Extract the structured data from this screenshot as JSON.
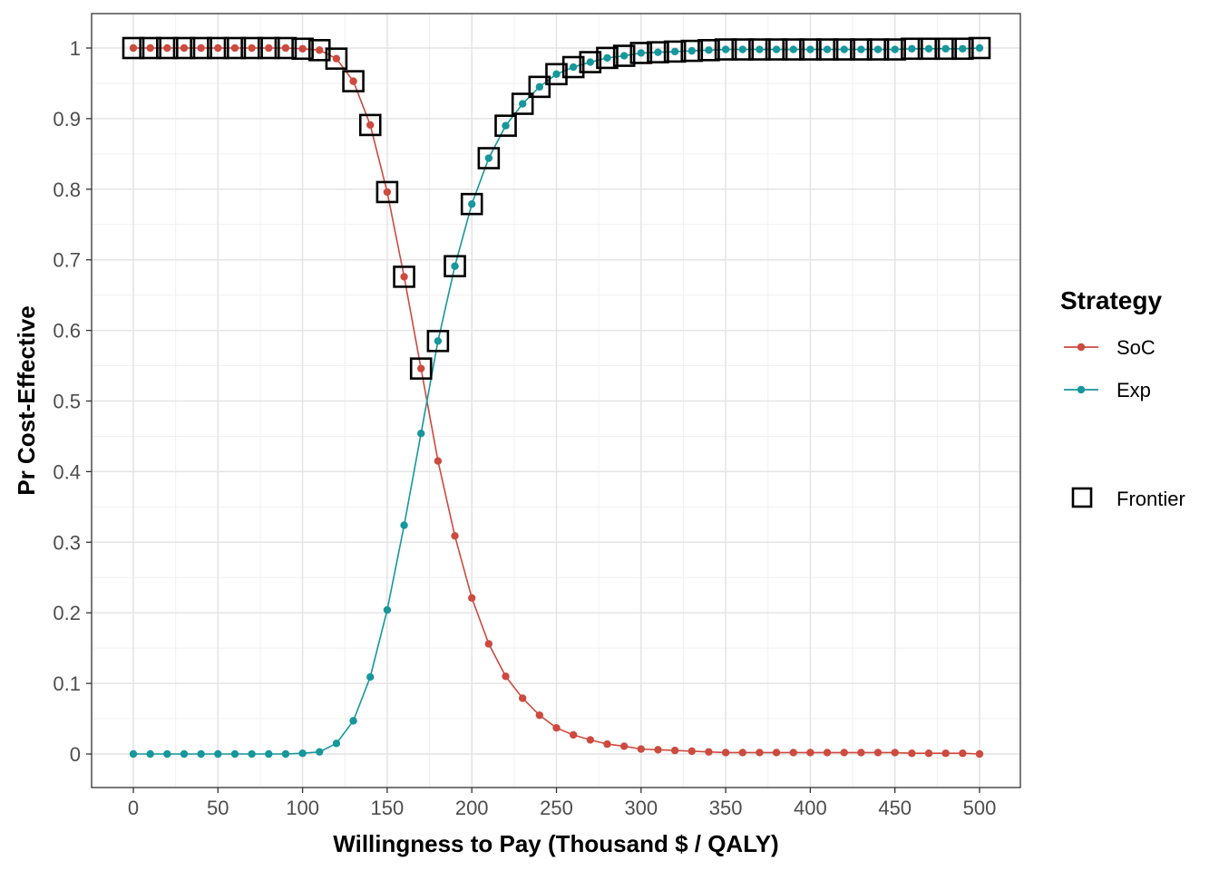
{
  "chart_data": {
    "type": "line",
    "xlabel": "Willingness to Pay (Thousand $ / QALY)",
    "ylabel": "Pr Cost-Effective",
    "xlim": [
      0,
      500
    ],
    "ylim": [
      0,
      1
    ],
    "x_ticks": [
      0,
      50,
      100,
      150,
      200,
      250,
      300,
      350,
      400,
      450,
      500
    ],
    "y_ticks": [
      0,
      0.1,
      0.2,
      0.3,
      0.4,
      0.5,
      0.6,
      0.7,
      0.8,
      0.9,
      1
    ],
    "x_tick_labels": [
      "0",
      "50",
      "100",
      "150",
      "200",
      "250",
      "300",
      "350",
      "400",
      "450",
      "500"
    ],
    "y_tick_labels": [
      "0",
      "0.1",
      "0.2",
      "0.3",
      "0.4",
      "0.5",
      "0.6",
      "0.7",
      "0.8",
      "0.9",
      "1"
    ],
    "grid": true,
    "legend_placement": "right",
    "legend": {
      "title": "Strategy",
      "frontier_label": "Frontier"
    },
    "x": [
      0,
      10,
      20,
      30,
      40,
      50,
      60,
      70,
      80,
      90,
      100,
      110,
      120,
      130,
      140,
      150,
      160,
      170,
      180,
      190,
      200,
      210,
      220,
      230,
      240,
      250,
      260,
      270,
      280,
      290,
      300,
      310,
      320,
      330,
      340,
      350,
      360,
      370,
      380,
      390,
      400,
      410,
      420,
      430,
      440,
      450,
      460,
      470,
      480,
      490,
      500
    ],
    "series": [
      {
        "name": "SoC",
        "color": "#cd4a3f",
        "values": [
          1,
          1,
          1,
          1,
          1,
          1,
          1,
          1,
          1,
          1,
          0.999,
          0.997,
          0.985,
          0.953,
          0.891,
          0.796,
          0.676,
          0.546,
          0.415,
          0.309,
          0.221,
          0.156,
          0.11,
          0.079,
          0.055,
          0.037,
          0.027,
          0.02,
          0.014,
          0.011,
          0.007,
          0.006,
          0.005,
          0.004,
          0.003,
          0.002,
          0.002,
          0.002,
          0.002,
          0.002,
          0.002,
          0.002,
          0.002,
          0.002,
          0.002,
          0.002,
          0.001,
          0.001,
          0.001,
          0.001,
          0
        ]
      },
      {
        "name": "Exp",
        "color": "#16979c",
        "values": [
          0,
          0,
          0,
          0,
          0,
          0,
          0,
          0,
          0,
          0,
          0.001,
          0.003,
          0.015,
          0.047,
          0.109,
          0.204,
          0.324,
          0.454,
          0.585,
          0.691,
          0.779,
          0.844,
          0.89,
          0.921,
          0.945,
          0.963,
          0.973,
          0.98,
          0.986,
          0.989,
          0.993,
          0.994,
          0.995,
          0.996,
          0.997,
          0.998,
          0.998,
          0.998,
          0.998,
          0.998,
          0.998,
          0.998,
          0.998,
          0.998,
          0.998,
          0.998,
          0.999,
          0.999,
          0.999,
          0.999,
          1
        ]
      }
    ],
    "frontier": [
      {
        "x": 0,
        "y": 1
      },
      {
        "x": 10,
        "y": 1
      },
      {
        "x": 20,
        "y": 1
      },
      {
        "x": 30,
        "y": 1
      },
      {
        "x": 40,
        "y": 1
      },
      {
        "x": 50,
        "y": 1
      },
      {
        "x": 60,
        "y": 1
      },
      {
        "x": 70,
        "y": 1
      },
      {
        "x": 80,
        "y": 1
      },
      {
        "x": 90,
        "y": 1
      },
      {
        "x": 100,
        "y": 0.999
      },
      {
        "x": 110,
        "y": 0.997
      },
      {
        "x": 120,
        "y": 0.985
      },
      {
        "x": 130,
        "y": 0.953
      },
      {
        "x": 140,
        "y": 0.891
      },
      {
        "x": 150,
        "y": 0.796
      },
      {
        "x": 160,
        "y": 0.676
      },
      {
        "x": 170,
        "y": 0.546
      },
      {
        "x": 180,
        "y": 0.585
      },
      {
        "x": 190,
        "y": 0.691
      },
      {
        "x": 200,
        "y": 0.779
      },
      {
        "x": 210,
        "y": 0.844
      },
      {
        "x": 220,
        "y": 0.89
      },
      {
        "x": 230,
        "y": 0.921
      },
      {
        "x": 240,
        "y": 0.945
      },
      {
        "x": 250,
        "y": 0.963
      },
      {
        "x": 260,
        "y": 0.973
      },
      {
        "x": 270,
        "y": 0.98
      },
      {
        "x": 280,
        "y": 0.986
      },
      {
        "x": 290,
        "y": 0.989
      },
      {
        "x": 300,
        "y": 0.993
      },
      {
        "x": 310,
        "y": 0.994
      },
      {
        "x": 320,
        "y": 0.995
      },
      {
        "x": 330,
        "y": 0.996
      },
      {
        "x": 340,
        "y": 0.997
      },
      {
        "x": 350,
        "y": 0.998
      },
      {
        "x": 360,
        "y": 0.998
      },
      {
        "x": 370,
        "y": 0.998
      },
      {
        "x": 380,
        "y": 0.998
      },
      {
        "x": 390,
        "y": 0.998
      },
      {
        "x": 400,
        "y": 0.998
      },
      {
        "x": 410,
        "y": 0.998
      },
      {
        "x": 420,
        "y": 0.998
      },
      {
        "x": 430,
        "y": 0.998
      },
      {
        "x": 440,
        "y": 0.998
      },
      {
        "x": 450,
        "y": 0.998
      },
      {
        "x": 460,
        "y": 0.999
      },
      {
        "x": 470,
        "y": 0.999
      },
      {
        "x": 480,
        "y": 0.999
      },
      {
        "x": 490,
        "y": 0.999
      },
      {
        "x": 500,
        "y": 1
      }
    ]
  }
}
